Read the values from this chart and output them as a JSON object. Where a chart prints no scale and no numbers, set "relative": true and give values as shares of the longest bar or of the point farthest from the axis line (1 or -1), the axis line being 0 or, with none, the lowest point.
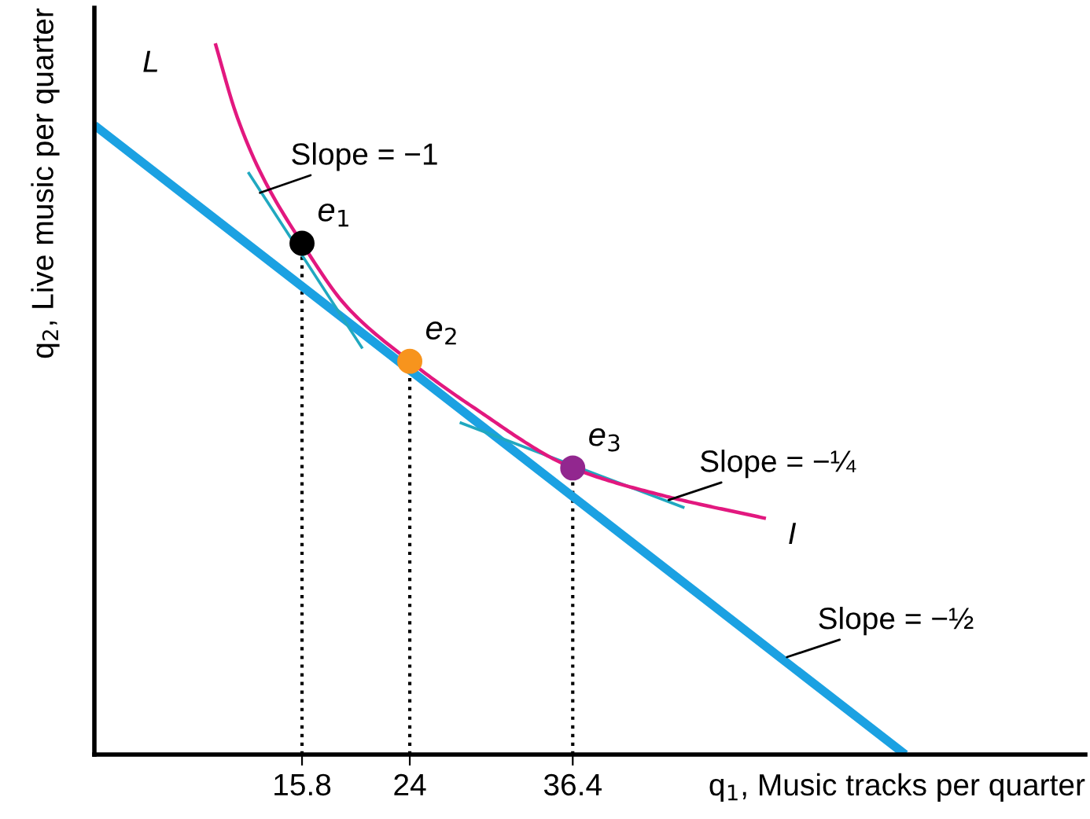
{
  "chart_data": {
    "type": "line",
    "relative": true,
    "xlabel": "q$_{1}$, Music tracks per quarter",
    "ylabel": "q$_{2}$, Live music per quarter",
    "xlim": [
      0,
      75.4
    ],
    "xticks": [
      15.8,
      24,
      36.4
    ],
    "tick_labels": "x",
    "series": [
      {
        "type": "line",
        "color": "#1ba1e2",
        "x": [
          0,
          61.7
        ],
        "values": [
          0.885,
          0
        ]
      },
      {
        "type": "line",
        "color": "#e2187f",
        "x": [
          9.2,
          10.8,
          12.6,
          15.8,
          19.2,
          24,
          28.7,
          36.4,
          43.1,
          51.1
        ],
        "values": [
          1.0,
          0.9,
          0.82,
          0.719,
          0.63,
          0.553,
          0.49,
          0.403,
          0.365,
          0.332
        ]
      },
      {
        "type": "line",
        "color": "#20a8c0",
        "x": [
          11.7,
          20.4
        ],
        "values": [
          0.819,
          0.571
        ]
      },
      {
        "type": "line",
        "color": "#20a8c0",
        "x": [
          27.8,
          44.9
        ],
        "values": [
          0.467,
          0.347
        ]
      },
      {
        "type": "scatter",
        "color": "#000000",
        "marker": "circle",
        "x": [
          15.8
        ],
        "values": [
          0.719
        ]
      },
      {
        "type": "scatter",
        "color": "#f7941d",
        "marker": "circle",
        "x": [
          24
        ],
        "values": [
          0.553
        ]
      },
      {
        "type": "scatter",
        "color": "#92278f",
        "marker": "circle",
        "x": [
          36.4
        ],
        "values": [
          0.403
        ]
      }
    ],
    "annotations": [
      {
        "text": "L",
        "x": 0,
        "y": 0.885
      },
      {
        "text": "I",
        "x": 51.1,
        "y": 0.332
      },
      {
        "text": "e$_{1}$",
        "x": 15.8,
        "y": 0.719
      },
      {
        "text": "e$_{2}$",
        "x": 24,
        "y": 0.553
      },
      {
        "text": "e$_{3}$",
        "x": 36.4,
        "y": 0.403
      },
      {
        "text": "Slope = −1",
        "x": 12.6,
        "y": 0.79
      },
      {
        "text": "Slope = −¼",
        "x": 43.7,
        "y": 0.358
      },
      {
        "text": "Slope = −½",
        "x": 52.7,
        "y": 0.137
      }
    ]
  }
}
